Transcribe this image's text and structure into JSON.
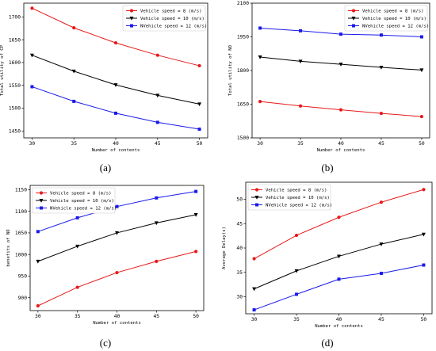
{
  "figure": {
    "panels": [
      {
        "caption": "(a)",
        "chart_data": {
          "type": "line",
          "xlabel": "Number of contents",
          "ylabel": "Total utility of CP",
          "x": [
            30,
            35,
            40,
            45,
            50
          ],
          "xticks": [
            30,
            35,
            40,
            45,
            50
          ],
          "ylim": [
            1435,
            1730
          ],
          "yticks": [
            1450,
            1500,
            1550,
            1600,
            1650,
            1700
          ],
          "legend_position": "top-right",
          "grid": false,
          "series": [
            {
              "name": "Vehicle speed = 8 (m/s)",
              "color": "#e8191a",
              "marker": "circle",
              "values": [
                1719,
                1676,
                1643,
                1616,
                1593
              ]
            },
            {
              "name": "Vehicle speed = 10 (m/s)",
              "color": "#000000",
              "marker": "triangle-down",
              "values": [
                1616,
                1581,
                1551,
                1528,
                1509
              ]
            },
            {
              "name": "NVehicle speed = 12 (m/s)",
              "color": "#1a1aeb",
              "marker": "square",
              "values": [
                1547,
                1515,
                1489,
                1469,
                1454
              ]
            }
          ]
        }
      },
      {
        "caption": "(b)",
        "chart_data": {
          "type": "line",
          "xlabel": "Number of contents",
          "ylabel": "Total utility of NO",
          "x": [
            30,
            35,
            40,
            45,
            50
          ],
          "xticks": [
            30,
            35,
            40,
            45,
            50
          ],
          "ylim": [
            1500,
            2100
          ],
          "yticks": [
            1500,
            1650,
            1800,
            1950,
            2100
          ],
          "legend_position": "top-right",
          "grid": false,
          "series": [
            {
              "name": "Vehicle speed = 8 (m/s)",
              "color": "#e8191a",
              "marker": "circle",
              "values": [
                1662,
                1642,
                1625,
                1609,
                1595
              ]
            },
            {
              "name": "Vehicle speed = 10 (m/s)",
              "color": "#000000",
              "marker": "triangle-down",
              "values": [
                1860,
                1841,
                1828,
                1814,
                1802
              ]
            },
            {
              "name": "NVehicle speed = 12 (m/s)",
              "color": "#1a1aeb",
              "marker": "square",
              "values": [
                1989,
                1977,
                1962,
                1958,
                1950
              ]
            }
          ]
        }
      },
      {
        "caption": "(c)",
        "chart_data": {
          "type": "line",
          "xlabel": "Number of contents",
          "ylabel": "benefits of NO",
          "x": [
            30,
            35,
            40,
            45,
            50
          ],
          "xticks": [
            30,
            35,
            40,
            45,
            50
          ],
          "ylim": [
            870,
            1160
          ],
          "yticks": [
            900,
            950,
            1000,
            1050,
            1100,
            1150
          ],
          "legend_position": "top-left",
          "grid": false,
          "series": [
            {
              "name": "Vehicle speed = 8 (m/s)",
              "color": "#e8191a",
              "marker": "circle",
              "values": [
                881,
                924,
                958,
                984,
                1007
              ]
            },
            {
              "name": "Vehicle speed = 10 (m/s)",
              "color": "#000000",
              "marker": "triangle-down",
              "values": [
                984,
                1019,
                1050,
                1073,
                1092
              ]
            },
            {
              "name": "NVehicle speed = 12 (m/s)",
              "color": "#1a1aeb",
              "marker": "square",
              "values": [
                1053,
                1085,
                1111,
                1131,
                1146
              ]
            }
          ]
        }
      },
      {
        "caption": "(d)",
        "chart_data": {
          "type": "line",
          "xlabel": "Number of contents",
          "ylabel": "Average Delay(s)",
          "x": [
            30,
            35,
            40,
            45,
            50
          ],
          "xticks": [
            30,
            35,
            40,
            45,
            50
          ],
          "ylim": [
            26.5,
            53.5
          ],
          "yticks": [
            30,
            35,
            40,
            45,
            50
          ],
          "legend_position": "top-left",
          "grid": false,
          "series": [
            {
              "name": "Vehicle speed = 8 (m/s)",
              "color": "#e8191a",
              "marker": "circle",
              "values": [
                37.8,
                42.6,
                46.3,
                49.4,
                52.0
              ]
            },
            {
              "name": "Vehicle speed = 10 (m/s)",
              "color": "#000000",
              "marker": "triangle-down",
              "values": [
                31.6,
                35.3,
                38.3,
                40.8,
                42.8
              ]
            },
            {
              "name": "NVehicle speed = 12 (m/s)",
              "color": "#1a1aeb",
              "marker": "square",
              "values": [
                27.3,
                30.5,
                33.6,
                34.8,
                36.5
              ]
            }
          ]
        }
      }
    ]
  }
}
